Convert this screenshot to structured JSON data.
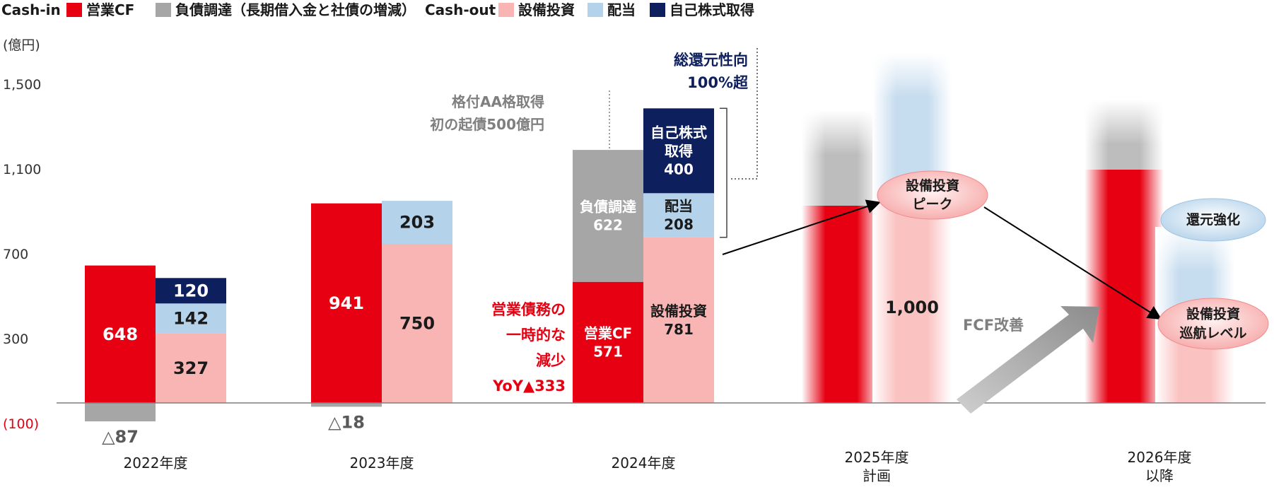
{
  "chart_data": {
    "type": "bar",
    "ylabel": "(億円)",
    "ylim": [
      -100,
      1700
    ],
    "y_ticks": [
      {
        "value": 1500,
        "label": "1,500",
        "color": "#333333"
      },
      {
        "value": 1100,
        "label": "1,100",
        "color": "#333333"
      },
      {
        "value": 700,
        "label": "700",
        "color": "#333333"
      },
      {
        "value": 300,
        "label": "300",
        "color": "#333333"
      },
      {
        "value": -100,
        "label": "(100)",
        "color": "#e60012"
      }
    ],
    "legend": {
      "placement": "top-left",
      "in_group": "Cash-in",
      "out_group": "Cash-out",
      "items": [
        {
          "key": "operating_cf",
          "label": "営業CF",
          "color": "#e60012",
          "group": "in"
        },
        {
          "key": "debt",
          "label": "負債調達（長期借入金と社債の増減）",
          "color": "#a6a6a6",
          "group": "in"
        },
        {
          "key": "capex",
          "label": "設備投資",
          "color": "#f9b4b4",
          "group": "out"
        },
        {
          "key": "dividend",
          "label": "配当",
          "color": "#b4d2ea",
          "group": "out"
        },
        {
          "key": "buyback",
          "label": "自己株式取得",
          "color": "#0d1f5c",
          "group": "out"
        }
      ]
    },
    "categories": [
      "2022年度",
      "2023年度",
      "2024年度",
      "2025年度\n計画",
      "2026年度\n以降"
    ],
    "bars": [
      {
        "cat": 0,
        "side": "in",
        "segments": [
          {
            "key": "operating_cf",
            "value": 648,
            "label": "648",
            "label_color": "#ffffff"
          },
          {
            "key": "debt",
            "value": -87,
            "label": "△87",
            "label_color": "#595959",
            "label_pos": "below"
          }
        ]
      },
      {
        "cat": 0,
        "side": "out",
        "segments": [
          {
            "key": "capex",
            "value": 327,
            "label": "327",
            "label_color": "#1a1a1a"
          },
          {
            "key": "dividend",
            "value": 142,
            "label": "142",
            "label_color": "#1a1a1a"
          },
          {
            "key": "buyback",
            "value": 120,
            "label": "120",
            "label_color": "#ffffff"
          }
        ]
      },
      {
        "cat": 1,
        "side": "in",
        "segments": [
          {
            "key": "operating_cf",
            "value": 941,
            "label": "941",
            "label_color": "#ffffff"
          },
          {
            "key": "debt",
            "value": -18,
            "label": "△18",
            "label_color": "#595959",
            "label_pos": "below"
          }
        ]
      },
      {
        "cat": 1,
        "side": "out",
        "segments": [
          {
            "key": "capex",
            "value": 750,
            "label": "750",
            "label_color": "#1a1a1a"
          },
          {
            "key": "dividend",
            "value": 203,
            "label": "203",
            "label_color": "#1a1a1a"
          }
        ]
      },
      {
        "cat": 2,
        "side": "in",
        "segments": [
          {
            "key": "operating_cf",
            "value": 571,
            "label": "営業CF\n571",
            "label_color": "#ffffff"
          },
          {
            "key": "debt",
            "value": 622,
            "label": "負債調達\n622",
            "label_color": "#ffffff"
          }
        ]
      },
      {
        "cat": 2,
        "side": "out",
        "segments": [
          {
            "key": "capex",
            "value": 781,
            "label": "設備投資\n781",
            "label_color": "#1a1a1a"
          },
          {
            "key": "dividend",
            "value": 208,
            "label": "配当\n208",
            "label_color": "#1a1a1a"
          },
          {
            "key": "buyback",
            "value": 400,
            "label": "自己株式\n取得\n400",
            "label_color": "#ffffff"
          }
        ]
      }
    ],
    "faded_bars": [
      {
        "cat": 3,
        "side": "in",
        "segments": [
          {
            "key": "operating_cf",
            "value": 930
          },
          {
            "key": "debt",
            "value": 450
          }
        ]
      },
      {
        "cat": 3,
        "side": "out",
        "segments": [
          {
            "key": "capex",
            "value": 1000,
            "label": "1,000"
          },
          {
            "key": "dividend",
            "value": 650
          }
        ]
      },
      {
        "cat": 4,
        "side": "in",
        "segments": [
          {
            "key": "operating_cf",
            "value": 1100
          },
          {
            "key": "debt",
            "value": 330
          }
        ]
      },
      {
        "cat": 4,
        "side": "out",
        "segments": [
          {
            "key": "capex",
            "value": 430
          },
          {
            "key": "dividend",
            "value": 400
          }
        ]
      }
    ],
    "annotations": {
      "rating": "格付AA格取得\n初の起債500億円",
      "payout": "総還元性向\n100%超",
      "receivables": "営業債務の\n一時的な\n減少\nYoY▲333",
      "capex_peak": "設備投資\nピーク",
      "return_up": "還元強化",
      "capex_cruise": "設備投資\n巡航レベル",
      "fcf": "FCF改善"
    }
  }
}
